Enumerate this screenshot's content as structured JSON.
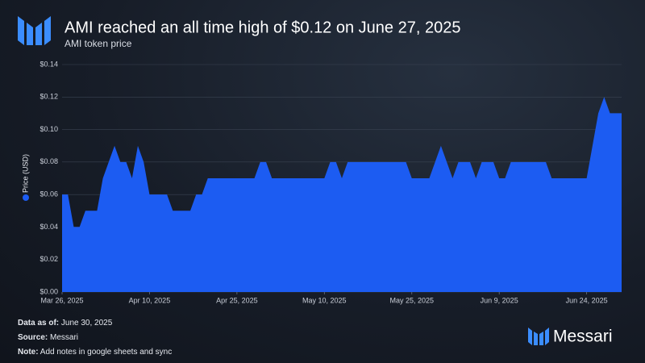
{
  "header": {
    "title": "AMI reached an all time high of $0.12 on June 27, 2025",
    "subtitle": "AMI token price"
  },
  "chart_data": {
    "type": "area",
    "x": [
      "2025-03-26",
      "2025-03-27",
      "2025-03-28",
      "2025-03-29",
      "2025-03-30",
      "2025-03-31",
      "2025-04-01",
      "2025-04-02",
      "2025-04-03",
      "2025-04-04",
      "2025-04-05",
      "2025-04-06",
      "2025-04-07",
      "2025-04-08",
      "2025-04-09",
      "2025-04-10",
      "2025-04-11",
      "2025-04-12",
      "2025-04-13",
      "2025-04-14",
      "2025-04-15",
      "2025-04-16",
      "2025-04-17",
      "2025-04-18",
      "2025-04-19",
      "2025-04-20",
      "2025-04-21",
      "2025-04-22",
      "2025-04-23",
      "2025-04-24",
      "2025-04-25",
      "2025-04-26",
      "2025-04-27",
      "2025-04-28",
      "2025-04-29",
      "2025-04-30",
      "2025-05-01",
      "2025-05-02",
      "2025-05-03",
      "2025-05-04",
      "2025-05-05",
      "2025-05-06",
      "2025-05-07",
      "2025-05-08",
      "2025-05-09",
      "2025-05-10",
      "2025-05-11",
      "2025-05-12",
      "2025-05-13",
      "2025-05-14",
      "2025-05-15",
      "2025-05-16",
      "2025-05-17",
      "2025-05-18",
      "2025-05-19",
      "2025-05-20",
      "2025-05-21",
      "2025-05-22",
      "2025-05-23",
      "2025-05-24",
      "2025-05-25",
      "2025-05-26",
      "2025-05-27",
      "2025-05-28",
      "2025-05-29",
      "2025-05-30",
      "2025-05-31",
      "2025-06-01",
      "2025-06-02",
      "2025-06-03",
      "2025-06-04",
      "2025-06-05",
      "2025-06-06",
      "2025-06-07",
      "2025-06-08",
      "2025-06-09",
      "2025-06-10",
      "2025-06-11",
      "2025-06-12",
      "2025-06-13",
      "2025-06-14",
      "2025-06-15",
      "2025-06-16",
      "2025-06-17",
      "2025-06-18",
      "2025-06-19",
      "2025-06-20",
      "2025-06-21",
      "2025-06-22",
      "2025-06-23",
      "2025-06-24",
      "2025-06-25",
      "2025-06-26",
      "2025-06-27",
      "2025-06-28",
      "2025-06-29",
      "2025-06-30"
    ],
    "series": [
      {
        "name": "Price (USD)",
        "color": "#1c5cf2",
        "values": [
          0.06,
          0.06,
          0.04,
          0.04,
          0.05,
          0.05,
          0.05,
          0.07,
          0.08,
          0.09,
          0.08,
          0.08,
          0.07,
          0.09,
          0.08,
          0.06,
          0.06,
          0.06,
          0.06,
          0.05,
          0.05,
          0.05,
          0.05,
          0.06,
          0.06,
          0.07,
          0.07,
          0.07,
          0.07,
          0.07,
          0.07,
          0.07,
          0.07,
          0.07,
          0.08,
          0.08,
          0.07,
          0.07,
          0.07,
          0.07,
          0.07,
          0.07,
          0.07,
          0.07,
          0.07,
          0.07,
          0.08,
          0.08,
          0.07,
          0.08,
          0.08,
          0.08,
          0.08,
          0.08,
          0.08,
          0.08,
          0.08,
          0.08,
          0.08,
          0.08,
          0.07,
          0.07,
          0.07,
          0.07,
          0.08,
          0.09,
          0.08,
          0.07,
          0.08,
          0.08,
          0.08,
          0.07,
          0.08,
          0.08,
          0.08,
          0.07,
          0.07,
          0.08,
          0.08,
          0.08,
          0.08,
          0.08,
          0.08,
          0.08,
          0.07,
          0.07,
          0.07,
          0.07,
          0.07,
          0.07,
          0.07,
          0.09,
          0.11,
          0.12,
          0.11,
          0.11,
          0.11
        ]
      }
    ],
    "xlim": [
      "2025-03-26",
      "2025-06-30"
    ],
    "xticks": [
      {
        "value": "2025-03-26",
        "label": "Mar 26, 2025"
      },
      {
        "value": "2025-04-10",
        "label": "Apr 10, 2025"
      },
      {
        "value": "2025-04-25",
        "label": "Apr 25, 2025"
      },
      {
        "value": "2025-05-10",
        "label": "May 10, 2025"
      },
      {
        "value": "2025-05-25",
        "label": "May 25, 2025"
      },
      {
        "value": "2025-06-09",
        "label": "Jun 9, 2025"
      },
      {
        "value": "2025-06-24",
        "label": "Jun 24, 2025"
      }
    ],
    "ylim": [
      0,
      0.14
    ],
    "yticks": [
      {
        "value": 0,
        "label": "$0.00"
      },
      {
        "value": 0.02,
        "label": "$0.02"
      },
      {
        "value": 0.04,
        "label": "$0.04"
      },
      {
        "value": 0.06,
        "label": "$0.06"
      },
      {
        "value": 0.08,
        "label": "$0.08"
      },
      {
        "value": 0.1,
        "label": "$0.10"
      },
      {
        "value": 0.12,
        "label": "$0.12"
      },
      {
        "value": 0.14,
        "label": "$0.14"
      }
    ],
    "grid": true
  },
  "footer": {
    "data_as_of": {
      "label": "Data as of:",
      "text": "June 30, 2025"
    },
    "source": {
      "label": "Source:",
      "text": "Messari"
    },
    "note": {
      "label": "Note:",
      "text": "Add notes in google sheets and sync"
    },
    "brand": "Messari"
  }
}
